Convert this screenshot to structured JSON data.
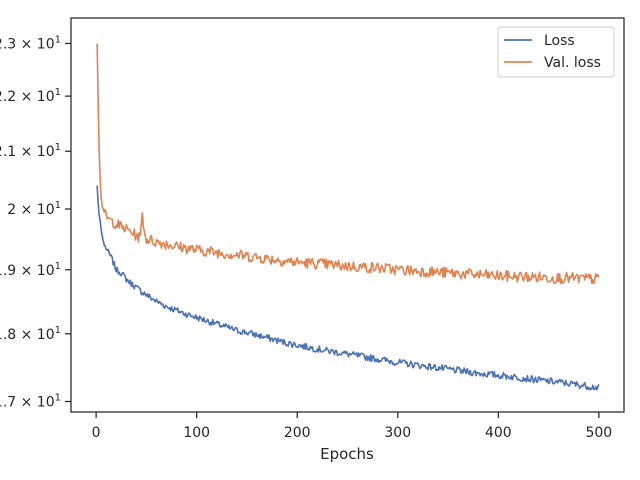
{
  "chart_data": {
    "type": "line",
    "title": "",
    "xlabel": "Epochs",
    "ylabel": "",
    "xlim": [
      -25,
      525
    ],
    "ylim": [
      16.85,
      23.5
    ],
    "yscale": "log",
    "grid": false,
    "legend_position": "top-right",
    "x_ticks": [
      0,
      100,
      200,
      300,
      400,
      500
    ],
    "y_ticks": [
      {
        "value": 17,
        "label": "1.7 × 10^1"
      },
      {
        "value": 18,
        "label": "1.8 × 10^1"
      },
      {
        "value": 19,
        "label": "1.9 × 10^1"
      },
      {
        "value": 20,
        "label": "2 × 10^1"
      },
      {
        "value": 21,
        "label": "2.1 × 10^1"
      },
      {
        "value": 22,
        "label": "2.2 × 10^1"
      },
      {
        "value": 23,
        "label": "2.3 × 10^1"
      }
    ],
    "series": [
      {
        "name": "Loss",
        "color": "#4c72b0",
        "x": [
          1,
          2,
          3,
          4,
          5,
          6,
          8,
          10,
          12,
          15,
          20,
          25,
          30,
          35,
          40,
          45,
          48,
          50,
          55,
          60,
          70,
          80,
          90,
          100,
          110,
          120,
          130,
          140,
          150,
          160,
          170,
          180,
          190,
          200,
          220,
          240,
          260,
          280,
          300,
          320,
          340,
          360,
          380,
          400,
          420,
          440,
          460,
          480,
          500
        ],
        "y": [
          20.4,
          20.1,
          19.9,
          19.8,
          19.65,
          19.55,
          19.4,
          19.35,
          19.28,
          19.2,
          19.0,
          18.95,
          18.85,
          18.78,
          18.72,
          18.65,
          18.63,
          18.6,
          18.55,
          18.5,
          18.42,
          18.36,
          18.3,
          18.25,
          18.2,
          18.15,
          18.1,
          18.05,
          18.02,
          17.98,
          17.94,
          17.9,
          17.86,
          17.83,
          17.77,
          17.72,
          17.67,
          17.62,
          17.57,
          17.53,
          17.49,
          17.45,
          17.41,
          17.38,
          17.35,
          17.31,
          17.28,
          17.24,
          17.2
        ]
      },
      {
        "name": "Val. loss",
        "color": "#dd8452",
        "x": [
          1,
          2,
          3,
          4,
          5,
          6,
          8,
          10,
          12,
          15,
          20,
          25,
          30,
          35,
          40,
          44,
          46,
          48,
          50,
          55,
          60,
          70,
          80,
          90,
          100,
          110,
          120,
          130,
          140,
          150,
          160,
          170,
          180,
          190,
          200,
          220,
          240,
          260,
          280,
          300,
          320,
          340,
          360,
          380,
          400,
          420,
          440,
          460,
          480,
          500
        ],
        "y": [
          23.0,
          21.9,
          21.0,
          20.5,
          20.2,
          20.05,
          19.95,
          19.88,
          19.83,
          19.8,
          19.75,
          19.7,
          19.66,
          19.62,
          19.55,
          19.52,
          19.95,
          19.6,
          19.5,
          19.48,
          19.45,
          19.42,
          19.38,
          19.35,
          19.32,
          19.3,
          19.28,
          19.26,
          19.24,
          19.22,
          19.2,
          19.18,
          19.16,
          19.14,
          19.12,
          19.1,
          19.07,
          19.05,
          19.03,
          19.0,
          18.98,
          18.96,
          18.94,
          18.92,
          18.9,
          18.89,
          18.88,
          18.87,
          18.86,
          18.85
        ]
      }
    ]
  }
}
